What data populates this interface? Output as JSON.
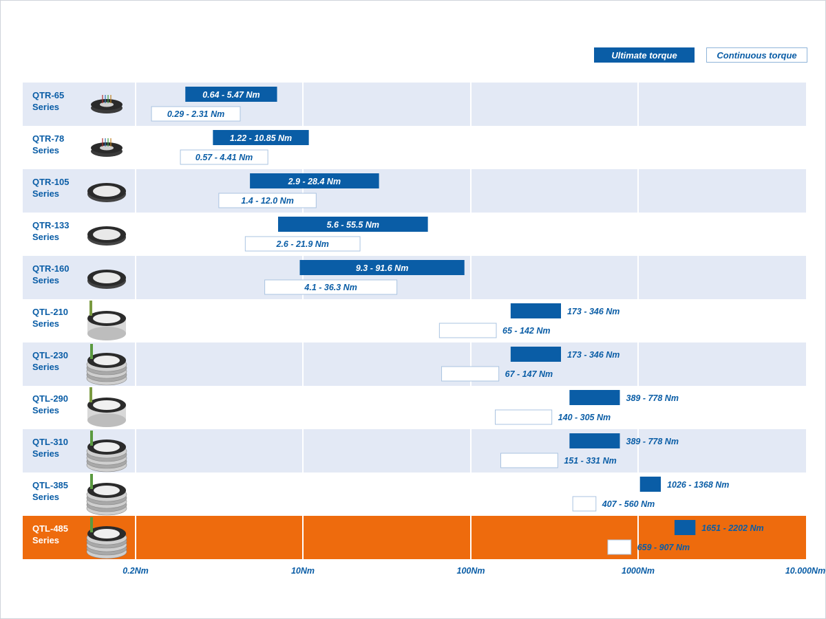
{
  "legend": {
    "ultimate_label": "Ultimate torque",
    "continuous_label": "Continuous torque"
  },
  "chart_data": {
    "type": "range-bar",
    "x_scale": "log",
    "xlim": [
      0.2,
      10000
    ],
    "x_ticks": [
      {
        "value": 0.2,
        "label": "0.2Nm"
      },
      {
        "value": 10,
        "label": "10Nm"
      },
      {
        "value": 100,
        "label": "100Nm"
      },
      {
        "value": 1000,
        "label": "1000Nm"
      },
      {
        "value": 10000,
        "label": "10.000Nm"
      }
    ],
    "series": [
      {
        "name": "Ultimate torque",
        "color": "#0a5da6"
      },
      {
        "name": "Continuous torque",
        "color": "#ffffff"
      }
    ],
    "rows": [
      {
        "name": "QTR-65",
        "suffix": "Series",
        "highlight": false,
        "icon": "slip-ring-small-icon",
        "ultimate": {
          "min": 0.64,
          "max": 5.47,
          "label": "0.64 - 5.47 Nm"
        },
        "continuous": {
          "min": 0.29,
          "max": 2.31,
          "label": "0.29 - 2.31 Nm"
        }
      },
      {
        "name": "QTR-78",
        "suffix": "Series",
        "highlight": false,
        "icon": "slip-ring-small-icon",
        "ultimate": {
          "min": 1.22,
          "max": 10.85,
          "label": "1.22 - 10.85 Nm"
        },
        "continuous": {
          "min": 0.57,
          "max": 4.41,
          "label": "0.57 - 4.41 Nm"
        }
      },
      {
        "name": "QTR-105",
        "suffix": "Series",
        "highlight": false,
        "icon": "slip-ring-flat-icon",
        "ultimate": {
          "min": 2.9,
          "max": 28.4,
          "label": "2.9 - 28.4 Nm"
        },
        "continuous": {
          "min": 1.4,
          "max": 12.0,
          "label": "1.4 - 12.0 Nm"
        }
      },
      {
        "name": "QTR-133",
        "suffix": "Series",
        "highlight": false,
        "icon": "slip-ring-flat-icon",
        "ultimate": {
          "min": 5.6,
          "max": 55.5,
          "label": "5.6 - 55.5 Nm"
        },
        "continuous": {
          "min": 2.6,
          "max": 21.9,
          "label": "2.6 - 21.9 Nm"
        }
      },
      {
        "name": "QTR-160",
        "suffix": "Series",
        "highlight": false,
        "icon": "slip-ring-flat-icon",
        "ultimate": {
          "min": 9.3,
          "max": 91.6,
          "label": "9.3 - 91.6 Nm"
        },
        "continuous": {
          "min": 4.1,
          "max": 36.3,
          "label": "4.1 - 36.3 Nm"
        }
      },
      {
        "name": "QTL-210",
        "suffix": "Series",
        "highlight": false,
        "icon": "slip-ring-tall-icon",
        "ultimate": {
          "min": 173,
          "max": 346,
          "label": "173 - 346 Nm"
        },
        "continuous": {
          "min": 65,
          "max": 142,
          "label": "65 - 142 Nm"
        }
      },
      {
        "name": "QTL-230",
        "suffix": "Series",
        "highlight": false,
        "icon": "slip-ring-stacked-icon",
        "ultimate": {
          "min": 173,
          "max": 346,
          "label": "173 - 346 Nm"
        },
        "continuous": {
          "min": 67,
          "max": 147,
          "label": "67 - 147 Nm"
        }
      },
      {
        "name": "QTL-290",
        "suffix": "Series",
        "highlight": false,
        "icon": "slip-ring-tall-icon",
        "ultimate": {
          "min": 389,
          "max": 778,
          "label": "389 - 778 Nm"
        },
        "continuous": {
          "min": 140,
          "max": 305,
          "label": "140 - 305 Nm"
        }
      },
      {
        "name": "QTL-310",
        "suffix": "Series",
        "highlight": false,
        "icon": "slip-ring-stacked-icon",
        "ultimate": {
          "min": 389,
          "max": 778,
          "label": "389 - 778 Nm"
        },
        "continuous": {
          "min": 151,
          "max": 331,
          "label": "151 - 331 Nm"
        }
      },
      {
        "name": "QTL-385",
        "suffix": "Series",
        "highlight": false,
        "icon": "slip-ring-stacked-icon",
        "ultimate": {
          "min": 1026,
          "max": 1368,
          "label": "1026 - 1368 Nm"
        },
        "continuous": {
          "min": 407,
          "max": 560,
          "label": "407 - 560 Nm"
        }
      },
      {
        "name": "QTL-485",
        "suffix": "Series",
        "highlight": true,
        "icon": "slip-ring-stacked-icon",
        "ultimate": {
          "min": 1651,
          "max": 2202,
          "label": "1651 - 2202 Nm"
        },
        "continuous": {
          "min": 659,
          "max": 907,
          "label": "659 - 907 Nm"
        }
      }
    ]
  },
  "colors": {
    "accent": "#0a5da6",
    "row_alt": "#e3e9f5",
    "row_plain": "#ffffff",
    "highlight": "#ee6b0d",
    "grid": "#ffffff",
    "continuous_border": "#a9c3e0"
  }
}
